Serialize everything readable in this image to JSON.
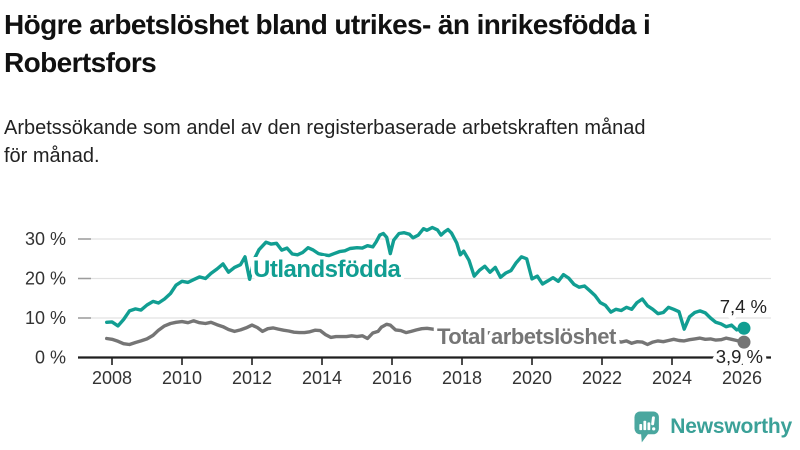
{
  "header": {
    "title_line1": "Högre arbetslöshet bland utrikes- än inrikesfödda i",
    "title_line2": "Robertsfors",
    "subtitle_line1": "Arbetssökande som andel av den registerbaserade arbetskraften månad",
    "subtitle_line2": "för månad."
  },
  "footer": {
    "brand": "Newsworthy",
    "logo_icon": "bar-chart-speech-bubble-icon"
  },
  "colors": {
    "accent_teal": "#119E92",
    "series_gray": "#757575",
    "axis_line": "#1F1F1F",
    "gridline": "#E2E2E2",
    "grid_tick": "#9C9C9C",
    "annotation_text": "#222222",
    "logo_teal": "#4AA79F",
    "brand_text": "#3BA198"
  },
  "chart_data": {
    "type": "line",
    "title": "Högre arbetslöshet bland utrikes- än inrikesfödda i Robertsfors",
    "subtitle": "Arbetssökande som andel av den registerbaserade arbetskraften månad för månad.",
    "xlabel": "",
    "ylabel": "",
    "grid": true,
    "legend_position": "inline-labels",
    "x_axis": {
      "ticks": [
        2008,
        2010,
        2012,
        2014,
        2016,
        2018,
        2020,
        2022,
        2024,
        2026
      ],
      "tick_labels": [
        "2008",
        "2010",
        "2012",
        "2014",
        "2016",
        "2018",
        "2020",
        "2022",
        "2024",
        "2026"
      ],
      "range": [
        2007.0,
        2026.8
      ]
    },
    "y_axis": {
      "ticks": [
        0,
        10,
        20,
        30
      ],
      "tick_labels": [
        "0 %",
        "10 %",
        "20 %",
        "30 %"
      ],
      "range": [
        0,
        34
      ],
      "unit": "%"
    },
    "series": [
      {
        "name": "Utlandsfödda",
        "color": "#119E92",
        "end_value": 7.4,
        "end_label": "7,4 %",
        "points": [
          [
            2007.85,
            8.9
          ],
          [
            2008.0,
            9.0
          ],
          [
            2008.17,
            8.0
          ],
          [
            2008.33,
            9.6
          ],
          [
            2008.5,
            11.8
          ],
          [
            2008.67,
            12.3
          ],
          [
            2008.83,
            12.0
          ],
          [
            2009.0,
            13.3
          ],
          [
            2009.17,
            14.2
          ],
          [
            2009.33,
            13.8
          ],
          [
            2009.5,
            14.8
          ],
          [
            2009.67,
            16.2
          ],
          [
            2009.83,
            18.3
          ],
          [
            2010.0,
            19.3
          ],
          [
            2010.17,
            19.0
          ],
          [
            2010.33,
            19.7
          ],
          [
            2010.5,
            20.4
          ],
          [
            2010.67,
            20.0
          ],
          [
            2010.83,
            21.3
          ],
          [
            2011.0,
            22.4
          ],
          [
            2011.17,
            23.7
          ],
          [
            2011.33,
            21.6
          ],
          [
            2011.5,
            22.8
          ],
          [
            2011.67,
            23.5
          ],
          [
            2011.8,
            25.5
          ],
          [
            2011.93,
            19.8
          ],
          [
            2012.07,
            25.0
          ],
          [
            2012.2,
            27.3
          ],
          [
            2012.4,
            29.2
          ],
          [
            2012.55,
            28.7
          ],
          [
            2012.7,
            28.9
          ],
          [
            2012.85,
            27.2
          ],
          [
            2013.0,
            27.7
          ],
          [
            2013.15,
            26.2
          ],
          [
            2013.3,
            26.0
          ],
          [
            2013.45,
            26.6
          ],
          [
            2013.6,
            27.8
          ],
          [
            2013.75,
            27.2
          ],
          [
            2013.9,
            26.3
          ],
          [
            2014.05,
            26.0
          ],
          [
            2014.2,
            25.8
          ],
          [
            2014.35,
            26.3
          ],
          [
            2014.5,
            26.8
          ],
          [
            2014.65,
            27.0
          ],
          [
            2014.8,
            27.6
          ],
          [
            2015.0,
            27.8
          ],
          [
            2015.15,
            27.7
          ],
          [
            2015.3,
            28.3
          ],
          [
            2015.45,
            28.0
          ],
          [
            2015.55,
            29.3
          ],
          [
            2015.65,
            31.0
          ],
          [
            2015.75,
            31.4
          ],
          [
            2015.85,
            30.4
          ],
          [
            2015.95,
            26.3
          ],
          [
            2016.05,
            29.7
          ],
          [
            2016.2,
            31.4
          ],
          [
            2016.35,
            31.6
          ],
          [
            2016.5,
            31.2
          ],
          [
            2016.6,
            30.3
          ],
          [
            2016.75,
            31.0
          ],
          [
            2016.9,
            32.6
          ],
          [
            2017.0,
            32.2
          ],
          [
            2017.15,
            32.9
          ],
          [
            2017.3,
            32.3
          ],
          [
            2017.4,
            31.0
          ],
          [
            2017.5,
            31.8
          ],
          [
            2017.6,
            32.4
          ],
          [
            2017.7,
            31.5
          ],
          [
            2017.85,
            29.0
          ],
          [
            2017.95,
            26.0
          ],
          [
            2018.05,
            26.9
          ],
          [
            2018.2,
            24.6
          ],
          [
            2018.35,
            20.6
          ],
          [
            2018.5,
            22.1
          ],
          [
            2018.65,
            23.1
          ],
          [
            2018.8,
            21.6
          ],
          [
            2018.95,
            22.8
          ],
          [
            2019.1,
            20.3
          ],
          [
            2019.25,
            21.4
          ],
          [
            2019.4,
            22.0
          ],
          [
            2019.55,
            24.0
          ],
          [
            2019.7,
            25.5
          ],
          [
            2019.85,
            25.0
          ],
          [
            2020.0,
            19.9
          ],
          [
            2020.15,
            20.6
          ],
          [
            2020.3,
            18.6
          ],
          [
            2020.45,
            19.4
          ],
          [
            2020.6,
            20.2
          ],
          [
            2020.75,
            19.3
          ],
          [
            2020.9,
            21.0
          ],
          [
            2021.05,
            20.1
          ],
          [
            2021.2,
            18.5
          ],
          [
            2021.35,
            17.8
          ],
          [
            2021.5,
            18.1
          ],
          [
            2021.65,
            16.9
          ],
          [
            2021.8,
            15.7
          ],
          [
            2021.95,
            13.9
          ],
          [
            2022.1,
            13.2
          ],
          [
            2022.25,
            11.5
          ],
          [
            2022.4,
            12.2
          ],
          [
            2022.55,
            11.9
          ],
          [
            2022.7,
            12.7
          ],
          [
            2022.85,
            12.2
          ],
          [
            2023.0,
            13.9
          ],
          [
            2023.15,
            14.8
          ],
          [
            2023.3,
            13.1
          ],
          [
            2023.45,
            12.2
          ],
          [
            2023.6,
            11.1
          ],
          [
            2023.75,
            11.4
          ],
          [
            2023.9,
            12.7
          ],
          [
            2024.05,
            12.2
          ],
          [
            2024.2,
            11.6
          ],
          [
            2024.35,
            7.2
          ],
          [
            2024.5,
            10.3
          ],
          [
            2024.65,
            11.4
          ],
          [
            2024.8,
            11.8
          ],
          [
            2024.95,
            11.3
          ],
          [
            2025.1,
            10.0
          ],
          [
            2025.25,
            8.9
          ],
          [
            2025.4,
            8.5
          ],
          [
            2025.55,
            7.8
          ],
          [
            2025.7,
            8.2
          ],
          [
            2025.85,
            7.0
          ],
          [
            2026.0,
            7.4
          ]
        ]
      },
      {
        "name": "Total arbetslöshet",
        "color": "#757575",
        "end_value": 3.9,
        "end_label": "3,9 %",
        "points": [
          [
            2007.85,
            4.8
          ],
          [
            2008.0,
            4.6
          ],
          [
            2008.17,
            4.1
          ],
          [
            2008.33,
            3.5
          ],
          [
            2008.5,
            3.3
          ],
          [
            2008.67,
            3.8
          ],
          [
            2008.83,
            4.2
          ],
          [
            2009.0,
            4.7
          ],
          [
            2009.17,
            5.6
          ],
          [
            2009.33,
            6.9
          ],
          [
            2009.5,
            8.0
          ],
          [
            2009.67,
            8.6
          ],
          [
            2009.83,
            8.9
          ],
          [
            2010.0,
            9.1
          ],
          [
            2010.17,
            8.8
          ],
          [
            2010.33,
            9.3
          ],
          [
            2010.5,
            8.8
          ],
          [
            2010.67,
            8.6
          ],
          [
            2010.83,
            8.9
          ],
          [
            2011.0,
            8.3
          ],
          [
            2011.17,
            7.8
          ],
          [
            2011.33,
            7.1
          ],
          [
            2011.5,
            6.6
          ],
          [
            2011.67,
            7.0
          ],
          [
            2011.83,
            7.5
          ],
          [
            2012.0,
            8.2
          ],
          [
            2012.15,
            7.6
          ],
          [
            2012.3,
            6.6
          ],
          [
            2012.45,
            7.3
          ],
          [
            2012.6,
            7.5
          ],
          [
            2012.75,
            7.2
          ],
          [
            2012.9,
            6.9
          ],
          [
            2013.05,
            6.7
          ],
          [
            2013.2,
            6.4
          ],
          [
            2013.35,
            6.3
          ],
          [
            2013.5,
            6.3
          ],
          [
            2013.65,
            6.5
          ],
          [
            2013.8,
            6.9
          ],
          [
            2013.95,
            6.8
          ],
          [
            2014.1,
            5.8
          ],
          [
            2014.25,
            5.1
          ],
          [
            2014.4,
            5.3
          ],
          [
            2014.55,
            5.3
          ],
          [
            2014.7,
            5.3
          ],
          [
            2014.85,
            5.5
          ],
          [
            2015.0,
            5.3
          ],
          [
            2015.15,
            5.5
          ],
          [
            2015.3,
            4.8
          ],
          [
            2015.45,
            6.2
          ],
          [
            2015.6,
            6.6
          ],
          [
            2015.7,
            7.7
          ],
          [
            2015.85,
            8.4
          ],
          [
            2015.95,
            8.2
          ],
          [
            2016.1,
            7.0
          ],
          [
            2016.25,
            6.8
          ],
          [
            2016.4,
            6.3
          ],
          [
            2016.55,
            6.6
          ],
          [
            2016.7,
            7.0
          ],
          [
            2016.85,
            7.3
          ],
          [
            2017.0,
            7.4
          ],
          [
            2017.15,
            7.2
          ],
          [
            2017.3,
            7.0
          ],
          [
            2017.5,
            6.8
          ],
          [
            2017.7,
            6.6
          ],
          [
            2017.9,
            6.4
          ],
          [
            2018.1,
            6.3
          ],
          [
            2018.3,
            6.2
          ],
          [
            2018.5,
            6.1
          ],
          [
            2018.7,
            6.2
          ],
          [
            2018.9,
            6.3
          ],
          [
            2019.1,
            6.2
          ],
          [
            2019.3,
            6.0
          ],
          [
            2019.5,
            5.9
          ],
          [
            2019.7,
            5.8
          ],
          [
            2019.9,
            5.9
          ],
          [
            2020.1,
            6.2
          ],
          [
            2020.3,
            6.5
          ],
          [
            2020.5,
            6.3
          ],
          [
            2020.7,
            6.0
          ],
          [
            2020.9,
            5.8
          ],
          [
            2021.1,
            5.5
          ],
          [
            2021.3,
            5.2
          ],
          [
            2021.5,
            5.0
          ],
          [
            2021.7,
            4.8
          ],
          [
            2021.9,
            4.6
          ],
          [
            2022.1,
            4.3
          ],
          [
            2022.25,
            4.0
          ],
          [
            2022.4,
            4.2
          ],
          [
            2022.55,
            3.9
          ],
          [
            2022.7,
            4.2
          ],
          [
            2022.85,
            3.6
          ],
          [
            2023.0,
            4.0
          ],
          [
            2023.15,
            3.9
          ],
          [
            2023.3,
            3.3
          ],
          [
            2023.45,
            3.9
          ],
          [
            2023.6,
            4.2
          ],
          [
            2023.75,
            4.0
          ],
          [
            2023.9,
            4.3
          ],
          [
            2024.05,
            4.6
          ],
          [
            2024.2,
            4.3
          ],
          [
            2024.35,
            4.2
          ],
          [
            2024.5,
            4.5
          ],
          [
            2024.65,
            4.7
          ],
          [
            2024.8,
            4.9
          ],
          [
            2024.95,
            4.6
          ],
          [
            2025.1,
            4.7
          ],
          [
            2025.25,
            4.4
          ],
          [
            2025.4,
            4.5
          ],
          [
            2025.55,
            4.9
          ],
          [
            2025.7,
            4.6
          ],
          [
            2025.85,
            4.3
          ],
          [
            2026.0,
            3.9
          ]
        ]
      }
    ]
  }
}
